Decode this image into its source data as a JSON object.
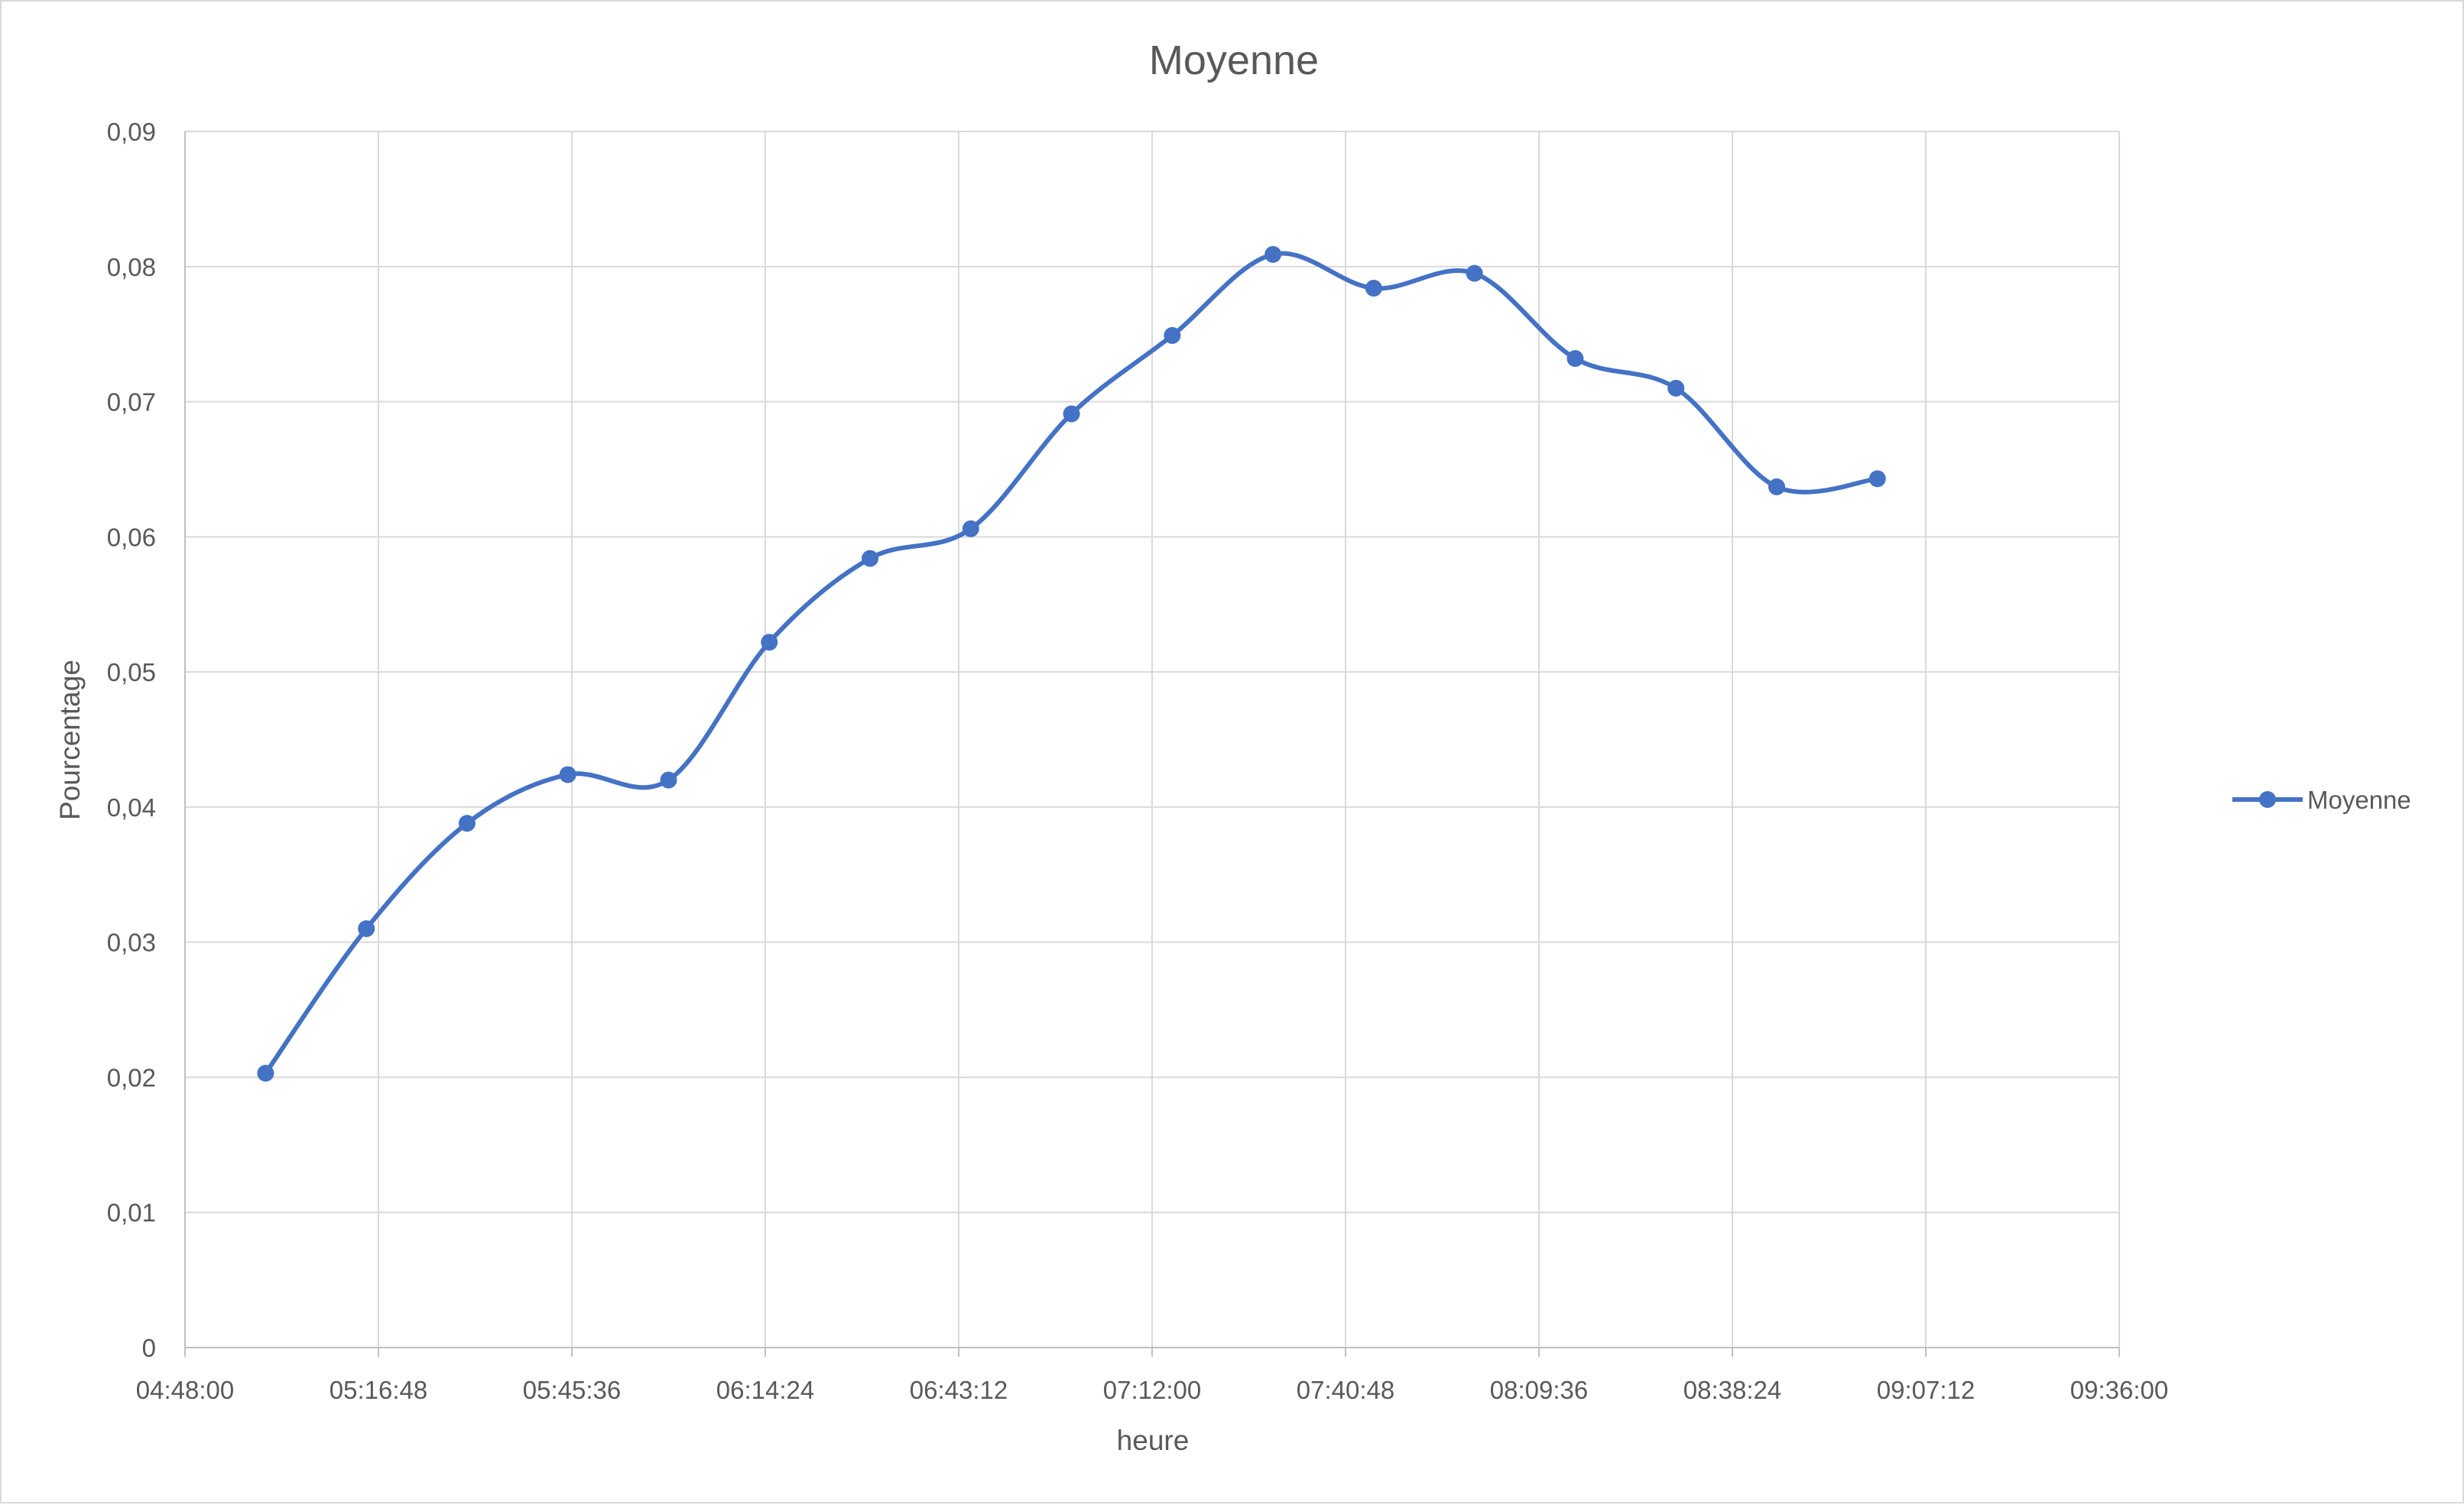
{
  "chart_data": {
    "type": "line",
    "title": "Moyenne",
    "xlabel": "heure",
    "ylabel": "Pourcentage",
    "x_ticks": [
      "04:48:00",
      "05:16:48",
      "05:45:36",
      "06:14:24",
      "06:43:12",
      "07:12:00",
      "07:40:48",
      "08:09:36",
      "08:38:24",
      "09:07:12",
      "09:36:00"
    ],
    "y_ticks": [
      "0",
      "0,01",
      "0,02",
      "0,03",
      "0,04",
      "0,05",
      "0,06",
      "0,07",
      "0,08",
      "0,09"
    ],
    "xlim": [
      "04:48:00",
      "09:36:00"
    ],
    "ylim": [
      0,
      0.09
    ],
    "grid": true,
    "smooth": true,
    "legend_position": "right",
    "series": [
      {
        "name": "Moyenne",
        "color": "#4472C4",
        "marker": "circle",
        "x": [
          "05:00:00",
          "05:15:00",
          "05:30:00",
          "05:45:00",
          "06:00:00",
          "06:15:00",
          "06:30:00",
          "06:45:00",
          "07:00:00",
          "07:15:00",
          "07:30:00",
          "07:45:00",
          "08:00:00",
          "08:15:00",
          "08:30:00",
          "08:45:00",
          "09:00:00"
        ],
        "y": [
          0.0203,
          0.031,
          0.0388,
          0.0424,
          0.042,
          0.0522,
          0.0584,
          0.0606,
          0.0691,
          0.0749,
          0.0809,
          0.0784,
          0.0795,
          0.0732,
          0.071,
          0.0637,
          0.0643
        ]
      }
    ]
  }
}
